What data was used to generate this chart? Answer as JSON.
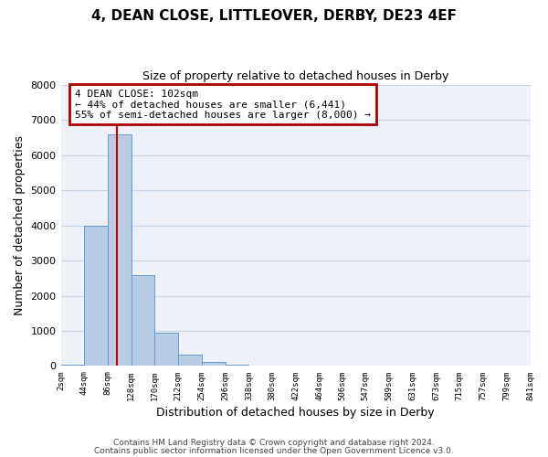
{
  "title": "4, DEAN CLOSE, LITTLEOVER, DERBY, DE23 4EF",
  "subtitle": "Size of property relative to detached houses in Derby",
  "xlabel": "Distribution of detached houses by size in Derby",
  "ylabel": "Number of detached properties",
  "bar_values": [
    50,
    4000,
    6600,
    2600,
    950,
    330,
    120,
    50,
    0,
    0,
    0,
    0,
    0,
    0,
    0,
    0,
    0,
    0,
    0,
    0
  ],
  "bin_edges": [
    2,
    44,
    86,
    128,
    170,
    212,
    254,
    296,
    338,
    380,
    422,
    464,
    506,
    547,
    589,
    631,
    673,
    715,
    757,
    799,
    841
  ],
  "tick_labels": [
    "2sqm",
    "44sqm",
    "86sqm",
    "128sqm",
    "170sqm",
    "212sqm",
    "254sqm",
    "296sqm",
    "338sqm",
    "380sqm",
    "422sqm",
    "464sqm",
    "506sqm",
    "547sqm",
    "589sqm",
    "631sqm",
    "673sqm",
    "715sqm",
    "757sqm",
    "799sqm",
    "841sqm"
  ],
  "bar_color": "#b8cce4",
  "bar_edge_color": "#6699cc",
  "vline_x": 102,
  "vline_color": "#cc0000",
  "ylim": [
    0,
    8000
  ],
  "yticks": [
    0,
    1000,
    2000,
    3000,
    4000,
    5000,
    6000,
    7000,
    8000
  ],
  "annotation_box_text": "4 DEAN CLOSE: 102sqm\n← 44% of detached houses are smaller (6,441)\n55% of semi-detached houses are larger (8,000) →",
  "annotation_box_color": "#aa0000",
  "grid_color": "#c8d4e8",
  "bg_color": "#eef2f8",
  "footnote1": "Contains HM Land Registry data © Crown copyright and database right 2024.",
  "footnote2": "Contains public sector information licensed under the Open Government Licence v3.0."
}
